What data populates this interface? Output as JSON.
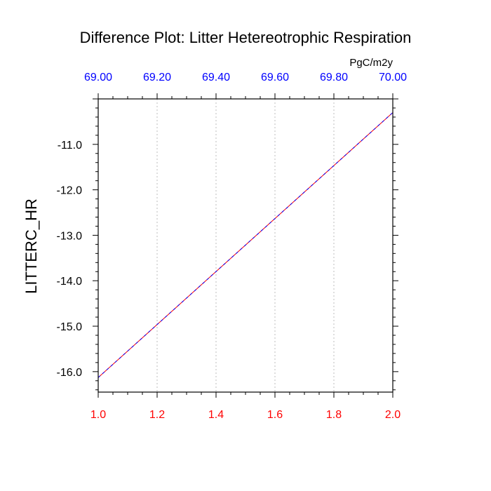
{
  "chart_data": {
    "type": "line",
    "title": "Difference Plot: Litter Hetereotrophic Respiration",
    "ylabel": "LITTERC_HR",
    "top_axis_units": "PgC/m2y",
    "x_bottom": {
      "range": [
        1.0,
        2.0
      ],
      "ticks": [
        1.0,
        1.2,
        1.4,
        1.6,
        1.8,
        2.0
      ],
      "tick_labels": [
        "1.0",
        "1.2",
        "1.4",
        "1.6",
        "1.8",
        "2.0"
      ],
      "color": "#ff0000"
    },
    "x_top": {
      "range": [
        69.0,
        70.0
      ],
      "ticks": [
        69.0,
        69.2,
        69.4,
        69.6,
        69.8,
        70.0
      ],
      "tick_labels": [
        "69.00",
        "69.20",
        "69.40",
        "69.60",
        "69.80",
        "70.00"
      ],
      "color": "#0000ff"
    },
    "y": {
      "range": [
        -16.45,
        -10.0
      ],
      "ticks": [
        -16.0,
        -15.0,
        -14.0,
        -13.0,
        -12.0,
        -11.0
      ],
      "tick_labels": [
        "-16.0",
        "-15.0",
        "-14.0",
        "-13.0",
        "-12.0",
        "-11.0"
      ]
    },
    "grid": "vertical dotted",
    "series": [
      {
        "x": [
          1.0,
          2.0
        ],
        "values": [
          -16.13,
          -10.3
        ],
        "color": "#ff0000",
        "style": "dashed"
      },
      {
        "x": [
          69.0,
          70.0
        ],
        "values": [
          -16.13,
          -10.3
        ],
        "color": "#0000ff",
        "style": "dashed"
      }
    ]
  }
}
